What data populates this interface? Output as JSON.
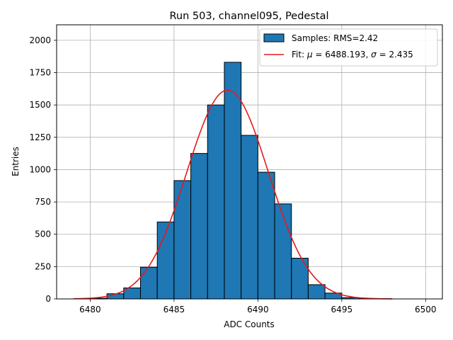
{
  "chart_data": {
    "type": "bar",
    "title": "Run 503, channel095, Pedestal",
    "xlabel": "ADC Counts",
    "ylabel": "Entries",
    "xlim": [
      6478,
      6501
    ],
    "ylim": [
      0,
      2120
    ],
    "xticks": [
      6480,
      6485,
      6490,
      6495,
      6500
    ],
    "yticks": [
      0,
      250,
      500,
      750,
      1000,
      1250,
      1500,
      1750,
      2000
    ],
    "grid": true,
    "legend_position": "top-right",
    "histogram": {
      "name": "Samples: RMS=2.42",
      "color": "#1f77b4",
      "edge_color": "#000000",
      "bin_width": 1,
      "bin_left_edges": [
        6480,
        6481,
        6482,
        6483,
        6484,
        6485,
        6486,
        6487,
        6488,
        6489,
        6490,
        6491,
        6492,
        6493,
        6494,
        6495,
        6496,
        6497
      ],
      "values": [
        5,
        40,
        85,
        245,
        595,
        915,
        1125,
        1500,
        1830,
        1265,
        980,
        735,
        315,
        110,
        45,
        10,
        3,
        1
      ]
    },
    "fit": {
      "name_prefix": "Fit: ",
      "name_rest": " = 6488.193, ",
      "name_rest2": " = 2.435",
      "mu_symbol": "μ",
      "sigma_symbol": "σ",
      "mu": 6488.193,
      "sigma": 2.435,
      "amplitude": 1615,
      "x_range": [
        6479,
        6498
      ],
      "color": "#e41a1c"
    }
  }
}
